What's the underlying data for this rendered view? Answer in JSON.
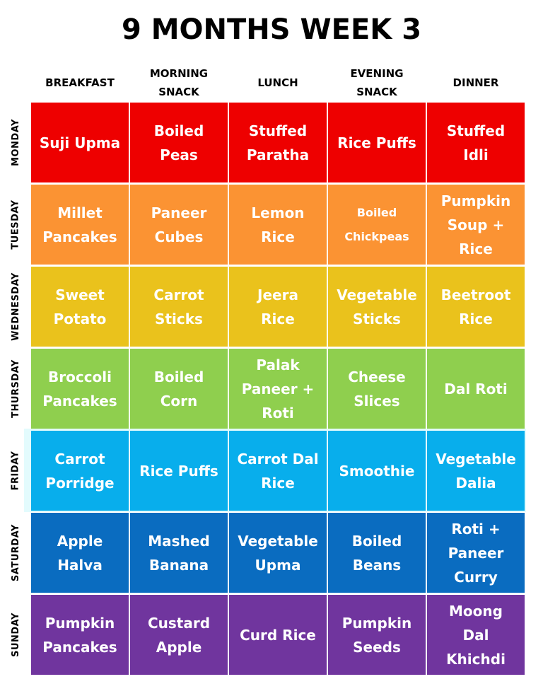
{
  "title": "9 MONTHS WEEK 3",
  "columns": [
    "BREAKFAST",
    "MORNING\nSNACK",
    "LUNCH",
    "EVENING\nSNACK",
    "DINNER"
  ],
  "colors": {
    "monday": "#ee0000",
    "tuesday": "#fb9333",
    "wednesday": "#eac21c",
    "thursday": "#8fcf4e",
    "friday": "#08aeec",
    "saturday": "#0a6cc0",
    "sunday": "#70359e"
  },
  "rows": [
    {
      "day": "MONDAY",
      "meals": [
        "Suji Upma",
        "Boiled\nPeas",
        "Stuffed\nParatha",
        "Rice Puffs",
        "Stuffed\nIdli"
      ]
    },
    {
      "day": "TUESDAY",
      "meals": [
        "Millet\nPancakes",
        "Paneer\nCubes",
        "Lemon\nRice",
        "Boiled\nChickpeas",
        "Pumpkin\nSoup +\nRice"
      ]
    },
    {
      "day": "WEDNESDAY",
      "meals": [
        "Sweet\nPotato",
        "Carrot\nSticks",
        "Jeera\nRice",
        "Vegetable\nSticks",
        "Beetroot\nRice"
      ]
    },
    {
      "day": "THURSDAY",
      "meals": [
        "Broccoli\nPancakes",
        "Boiled\nCorn",
        "Palak\nPaneer +\nRoti",
        "Cheese\nSlices",
        "Dal Roti"
      ]
    },
    {
      "day": "FRIDAY",
      "meals": [
        "Carrot\nPorridge",
        "Rice Puffs",
        "Carrot Dal\nRice",
        "Smoothie",
        "Vegetable\nDalia"
      ]
    },
    {
      "day": "SATURDAY",
      "meals": [
        "Apple\nHalva",
        "Mashed\nBanana",
        "Vegetable\nUpma",
        "Boiled\nBeans",
        "Roti +\nPaneer\nCurry"
      ]
    },
    {
      "day": "SUNDAY",
      "meals": [
        "Pumpkin\nPancakes",
        "Custard\nApple",
        "Curd Rice",
        "Pumpkin\nSeeds",
        "Moong\nDal\nKhichdi"
      ]
    }
  ]
}
